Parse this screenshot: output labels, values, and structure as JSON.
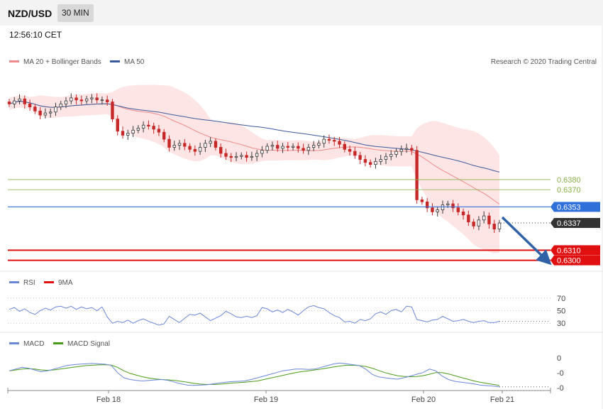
{
  "header": {
    "symbol": "NZD/USD",
    "interval": "30 MIN",
    "time": "12:56:10 CET"
  },
  "colors": {
    "ma20": "#f08a8a",
    "band_fill": "#fde0e0",
    "ma50": "#3b5a9a",
    "candle_up": "#3a3a3a",
    "candle_down": "#c62828",
    "green_level": "#8ab04a",
    "blue_level": "#2e6fd8",
    "red_level": "#e01010",
    "current": "#333333",
    "arrow": "#3062a8",
    "rsi": "#6a86d6",
    "macd": "#6a86d6",
    "macd_signal": "#4a9a1a"
  },
  "chart_data": [
    {
      "type": "candlestick",
      "title": "",
      "legend": [
        {
          "name": "MA 20 + Bollinger Bands",
          "color": "#f08a8a"
        },
        {
          "name": "MA 50",
          "color": "#3b5a9a"
        }
      ],
      "credit": "Research © 2020 Trading Central",
      "x_ticks": [
        "Feb 18",
        "Feb 19",
        "Feb 20",
        "Feb 21"
      ],
      "ylim": [
        0.6292,
        0.6482
      ],
      "close": [
        0.6455,
        0.6458,
        0.646,
        0.6455,
        0.6452,
        0.6448,
        0.6444,
        0.6446,
        0.6447,
        0.6452,
        0.6455,
        0.6458,
        0.6461,
        0.6459,
        0.6458,
        0.646,
        0.6461,
        0.6459,
        0.6459,
        0.6457,
        0.644,
        0.6428,
        0.6424,
        0.6426,
        0.6429,
        0.6431,
        0.6434,
        0.6433,
        0.643,
        0.6427,
        0.642,
        0.6412,
        0.6414,
        0.6416,
        0.6413,
        0.641,
        0.6408,
        0.6412,
        0.6416,
        0.6418,
        0.6412,
        0.6406,
        0.6403,
        0.6402,
        0.6403,
        0.6404,
        0.6402,
        0.6403,
        0.6406,
        0.6409,
        0.6413,
        0.6414,
        0.6411,
        0.6413,
        0.6412,
        0.6413,
        0.6411,
        0.6409,
        0.6412,
        0.6414,
        0.6416,
        0.642,
        0.6419,
        0.6418,
        0.6415,
        0.641,
        0.6408,
        0.6404,
        0.64,
        0.6397,
        0.6395,
        0.6398,
        0.64,
        0.6403,
        0.6405,
        0.6408,
        0.641,
        0.6411,
        0.6409,
        0.636,
        0.6358,
        0.6352,
        0.6348,
        0.635,
        0.6355,
        0.6356,
        0.6352,
        0.6348,
        0.6345,
        0.6338,
        0.6334,
        0.634,
        0.6344,
        0.6336,
        0.6331,
        0.6337
      ],
      "levels": [
        {
          "value": "0.6380",
          "role": "resistance",
          "color": "#8ab04a"
        },
        {
          "value": "0.6370",
          "role": "resistance",
          "color": "#8ab04a"
        },
        {
          "value": "0.6353",
          "role": "pivot",
          "color": "#2e6fd8"
        },
        {
          "value": "0.6337",
          "role": "last",
          "color": "#333333"
        },
        {
          "value": "0.6310",
          "role": "target",
          "color": "#e01010"
        },
        {
          "value": "0.6300",
          "role": "target",
          "color": "#e01010"
        }
      ]
    },
    {
      "type": "line",
      "name": "RSI",
      "legend": [
        {
          "name": "RSI",
          "color": "#6a86d6"
        },
        {
          "name": "9MA",
          "color": "#e01010"
        }
      ],
      "y_ticks": [
        "70",
        "50",
        "30"
      ],
      "ylim": [
        20,
        80
      ],
      "values": [
        52,
        55,
        49,
        53,
        47,
        44,
        50,
        54,
        51,
        56,
        57,
        54,
        57,
        52,
        56,
        53,
        55,
        50,
        56,
        40,
        30,
        33,
        31,
        35,
        30,
        34,
        37,
        33,
        30,
        27,
        29,
        41,
        36,
        31,
        38,
        44,
        43,
        46,
        40,
        34,
        38,
        42,
        49,
        45,
        40,
        39,
        41,
        39,
        42,
        55,
        53,
        48,
        51,
        47,
        52,
        48,
        43,
        50,
        56,
        58,
        55,
        53,
        47,
        42,
        39,
        32,
        33,
        30,
        36,
        34,
        37,
        45,
        48,
        44,
        50,
        52,
        48,
        57,
        56,
        36,
        34,
        32,
        35,
        36,
        41,
        37,
        33,
        34,
        36,
        33,
        31,
        33,
        34,
        31,
        31,
        33
      ]
    },
    {
      "type": "line",
      "name": "MACD",
      "legend": [
        {
          "name": "MACD",
          "color": "#6a86d6"
        },
        {
          "name": "MACD Signal",
          "color": "#4a9a1a"
        }
      ],
      "y_ticks": [
        "0",
        "-0",
        "-0"
      ],
      "ylim": [
        -1.05,
        1.15
      ],
      "macd": [
        0.0,
        0.1,
        0.2,
        0.15,
        0.05,
        -0.05,
        0.0,
        0.1,
        0.2,
        0.3,
        0.35,
        0.38,
        0.4,
        0.42,
        0.4,
        0.38,
        0.32,
        -0.1,
        -0.4,
        -0.5,
        -0.55,
        -0.58,
        -0.55,
        -0.52,
        -0.5,
        -0.55,
        -0.65,
        -0.75,
        -0.82,
        -0.84,
        -0.82,
        -0.8,
        -0.75,
        -0.7,
        -0.65,
        -0.62,
        -0.6,
        -0.58,
        -0.5,
        -0.4,
        -0.3,
        -0.2,
        -0.1,
        0.0,
        0.05,
        0.1,
        0.1,
        0.08,
        0.1,
        0.2,
        0.3,
        0.4,
        0.45,
        0.4,
        0.35,
        0.3,
        0.1,
        -0.2,
        -0.35,
        -0.4,
        -0.45,
        -0.48,
        -0.4,
        -0.3,
        -0.2,
        -0.1,
        0.1,
        0.0,
        -0.3,
        -0.5,
        -0.6,
        -0.65,
        -0.7,
        -0.75,
        -0.82,
        -0.85,
        -0.88,
        -0.92
      ],
      "signal": [
        0.0,
        0.05,
        0.1,
        0.12,
        0.1,
        0.05,
        0.03,
        0.05,
        0.1,
        0.15,
        0.2,
        0.25,
        0.3,
        0.32,
        0.34,
        0.35,
        0.33,
        0.2,
        0.0,
        -0.15,
        -0.25,
        -0.35,
        -0.42,
        -0.47,
        -0.5,
        -0.52,
        -0.55,
        -0.6,
        -0.65,
        -0.72,
        -0.76,
        -0.78,
        -0.78,
        -0.77,
        -0.74,
        -0.7,
        -0.68,
        -0.65,
        -0.62,
        -0.58,
        -0.5,
        -0.42,
        -0.34,
        -0.26,
        -0.18,
        -0.1,
        -0.04,
        0.0,
        0.05,
        0.1,
        0.16,
        0.22,
        0.28,
        0.32,
        0.32,
        0.3,
        0.25,
        0.15,
        0.02,
        -0.1,
        -0.2,
        -0.28,
        -0.32,
        -0.34,
        -0.33,
        -0.28,
        -0.2,
        -0.1,
        -0.1,
        -0.18,
        -0.28,
        -0.38,
        -0.48,
        -0.58,
        -0.66,
        -0.72,
        -0.78,
        -0.84
      ]
    }
  ]
}
